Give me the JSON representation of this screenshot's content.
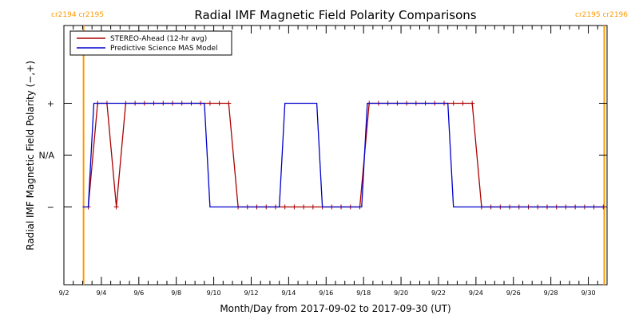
{
  "chart_data": {
    "type": "line",
    "title": "Radial IMF Magnetic Field Polarity Comparisons",
    "xlabel": "Month/Day from 2017-09-02 to 2017-09-30 (UT)",
    "ylabel": "Radial IMF Magnetic Field Polarity (−,+)",
    "xlim": [
      0,
      29
    ],
    "ylim": [
      -2.5,
      2.5
    ],
    "x_ticks": [
      {
        "x": 0,
        "label": "9/2"
      },
      {
        "x": 2,
        "label": "9/4"
      },
      {
        "x": 4,
        "label": "9/6"
      },
      {
        "x": 6,
        "label": "9/8"
      },
      {
        "x": 8,
        "label": "9/10"
      },
      {
        "x": 10,
        "label": "9/12"
      },
      {
        "x": 12,
        "label": "9/14"
      },
      {
        "x": 14,
        "label": "9/16"
      },
      {
        "x": 16,
        "label": "9/18"
      },
      {
        "x": 18,
        "label": "9/20"
      },
      {
        "x": 20,
        "label": "9/22"
      },
      {
        "x": 22,
        "label": "9/24"
      },
      {
        "x": 24,
        "label": "9/26"
      },
      {
        "x": 26,
        "label": "9/28"
      },
      {
        "x": 28,
        "label": "9/30"
      }
    ],
    "y_ticks": [
      {
        "y": 1,
        "label": "+"
      },
      {
        "y": 0,
        "label": "N/A"
      },
      {
        "y": -1,
        "label": "−"
      }
    ],
    "carrington_markers": [
      {
        "x": 1.05,
        "label": "cr2194 cr2195",
        "color": "#FF9900"
      },
      {
        "x": 28.85,
        "label": "cr2195 cr2196",
        "color": "#FF9900"
      }
    ],
    "legend": {
      "placement": "top-left"
    },
    "grid": false,
    "series": [
      {
        "name": "STEREO-Ahead (12-hr avg)",
        "color": "#AA0000",
        "markers": true,
        "points": [
          [
            1.3,
            -1
          ],
          [
            1.8,
            1
          ],
          [
            2.3,
            1
          ],
          [
            2.8,
            -1
          ],
          [
            3.3,
            1
          ],
          [
            3.8,
            1
          ],
          [
            4.3,
            1
          ],
          [
            4.8,
            1
          ],
          [
            5.3,
            1
          ],
          [
            5.8,
            1
          ],
          [
            6.3,
            1
          ],
          [
            6.8,
            1
          ],
          [
            7.3,
            1
          ],
          [
            7.8,
            1
          ],
          [
            8.3,
            1
          ],
          [
            8.8,
            1
          ],
          [
            9.3,
            -1
          ],
          [
            9.8,
            -1
          ],
          [
            10.3,
            -1
          ],
          [
            10.8,
            -1
          ],
          [
            11.3,
            -1
          ],
          [
            11.8,
            -1
          ],
          [
            12.3,
            -1
          ],
          [
            12.8,
            -1
          ],
          [
            13.3,
            -1
          ],
          [
            13.8,
            -1
          ],
          [
            14.3,
            -1
          ],
          [
            14.8,
            -1
          ],
          [
            15.3,
            -1
          ],
          [
            15.8,
            -1
          ],
          [
            16.3,
            1
          ],
          [
            16.8,
            1
          ],
          [
            17.3,
            1
          ],
          [
            17.8,
            1
          ],
          [
            18.3,
            1
          ],
          [
            18.8,
            1
          ],
          [
            19.3,
            1
          ],
          [
            19.8,
            1
          ],
          [
            20.3,
            1
          ],
          [
            20.8,
            1
          ],
          [
            21.3,
            1
          ],
          [
            21.8,
            1
          ],
          [
            22.3,
            -1
          ],
          [
            22.8,
            -1
          ],
          [
            23.3,
            -1
          ],
          [
            23.8,
            -1
          ],
          [
            24.3,
            -1
          ],
          [
            24.8,
            -1
          ],
          [
            25.3,
            -1
          ],
          [
            25.8,
            -1
          ],
          [
            26.3,
            -1
          ],
          [
            26.8,
            -1
          ],
          [
            27.3,
            -1
          ],
          [
            27.8,
            -1
          ],
          [
            28.3,
            -1
          ],
          [
            28.8,
            -1
          ]
        ]
      },
      {
        "name": "Predictive Science MAS Model",
        "color": "#0000CC",
        "markers": false,
        "points": [
          [
            1.0,
            -1
          ],
          [
            1.3,
            -1
          ],
          [
            1.6,
            1
          ],
          [
            7.5,
            1
          ],
          [
            7.8,
            -1
          ],
          [
            11.5,
            -1
          ],
          [
            11.8,
            1
          ],
          [
            13.5,
            1
          ],
          [
            13.8,
            -1
          ],
          [
            15.9,
            -1
          ],
          [
            16.2,
            1
          ],
          [
            20.5,
            1
          ],
          [
            20.8,
            -1
          ],
          [
            28.85,
            -1
          ]
        ]
      }
    ]
  }
}
